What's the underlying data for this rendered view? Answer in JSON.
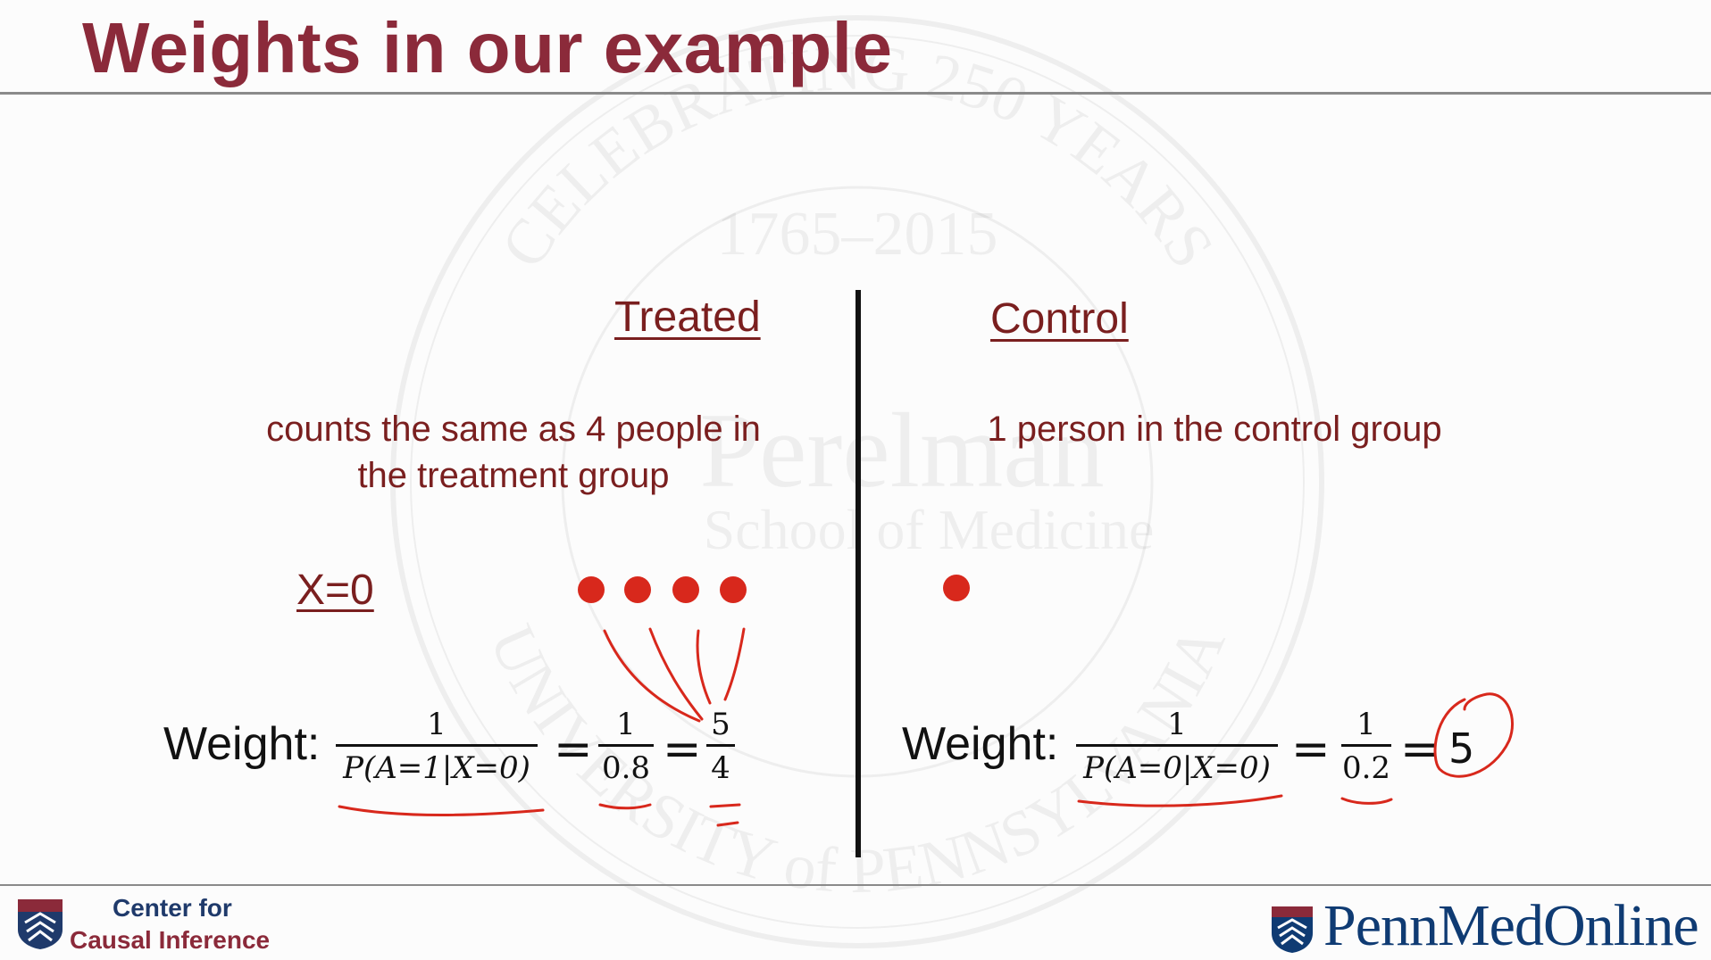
{
  "slide": {
    "title": "Weights in our example"
  },
  "watermark": {
    "arc_text": "CELEBRATING 250 YEARS",
    "years": "1765–2015",
    "name_line1": "Perelman",
    "name_line2": "School of Medicine",
    "bottom_arc": "UNIVERSITY of PENNSYLVANIA"
  },
  "treated": {
    "heading": "Treated",
    "description_line1": "counts the same as 4 people in",
    "description_line2": "the treatment group",
    "x_label": "X=0",
    "dot_count": 4,
    "weight_label": "Weight:",
    "frac1_num": "1",
    "frac1_den": "P(A=1|X=0)",
    "frac2_num": "1",
    "frac2_den": "0.8",
    "frac3_num": "5",
    "frac3_den": "4"
  },
  "control": {
    "heading": "Control",
    "description": "1 person in the control group",
    "dot_count": 1,
    "weight_label": "Weight:",
    "frac1_num": "1",
    "frac1_den": "P(A=0|X=0)",
    "frac2_num": "1",
    "frac2_den": "0.2",
    "result": "5"
  },
  "equals_sign": "=",
  "footer": {
    "center_line1": "Center for",
    "center_line2": "Causal Inference",
    "brand": "PennMedOnline"
  },
  "colors": {
    "title": "#8b2a3a",
    "dark_red_text": "#7a1f1f",
    "dot": "#d8281c",
    "ink_annotation": "#d8281c",
    "brand_blue": "#0f3b73"
  }
}
